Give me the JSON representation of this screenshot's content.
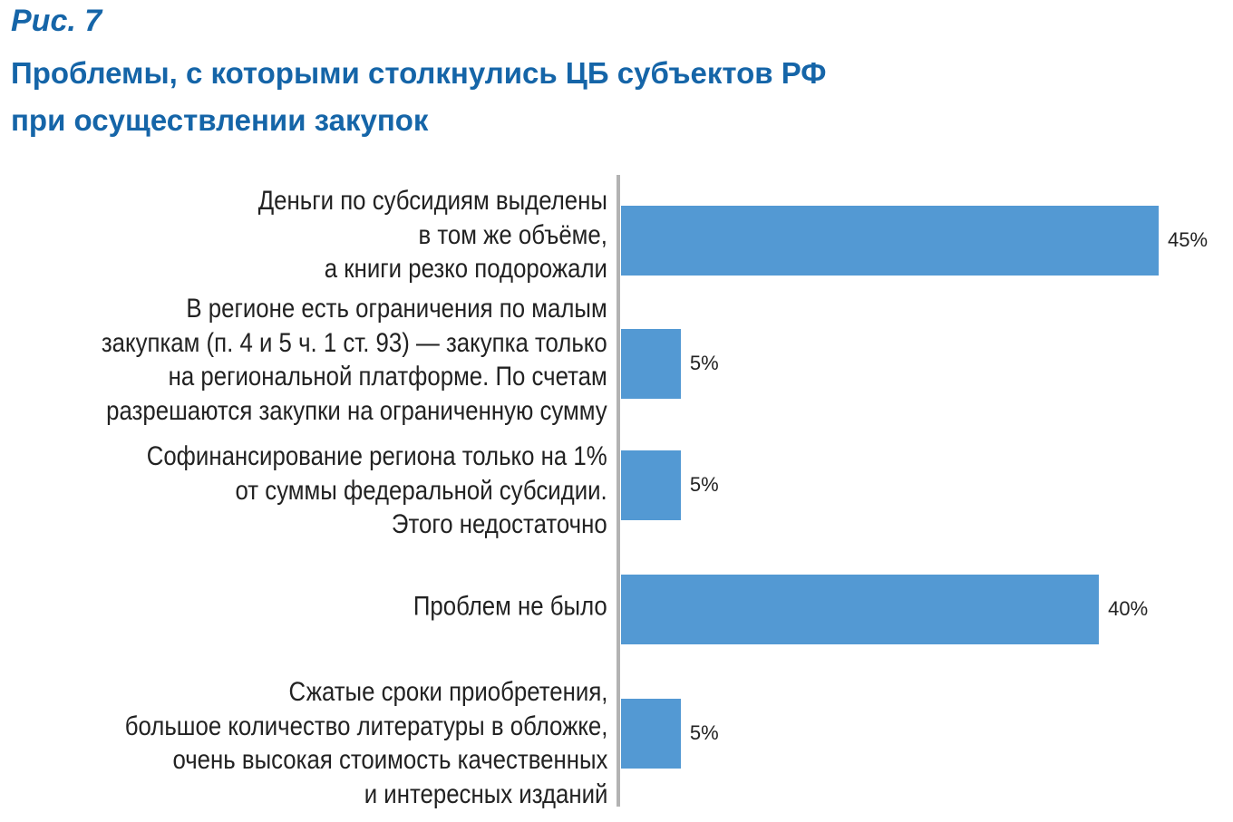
{
  "figure_label": "Рис. 7",
  "title_lines": [
    "Проблемы, с которыми столкнулись ЦБ субъектов РФ",
    "при осуществлении закупок"
  ],
  "colors": {
    "title": "#1565a8",
    "bar": "#5399d3",
    "axis": "#b3b3b3"
  },
  "chart_data": {
    "type": "bar",
    "orientation": "horizontal",
    "title": "Проблемы, с которыми столкнулись ЦБ субъектов РФ при осуществлении закупок",
    "categories": [
      [
        "Деньги по субсидиям выделены",
        "в том же объёме,",
        "а книги резко подорожали"
      ],
      [
        "В регионе есть ограничения по малым",
        "закупкам (п. 4 и 5 ч. 1 ст. 93) — закупка только",
        "на региональной платформе. По счетам",
        "разрешаются закупки на ограниченную сумму"
      ],
      [
        "Софинансирование региона только на 1%",
        "от суммы федеральной субсидии.",
        "Этого недостаточно"
      ],
      [
        "Проблем не было"
      ],
      [
        "Сжатые сроки приобретения,",
        "большое количество литературы в обложке,",
        "очень высокая стоимость качественных",
        "и интересных изданий"
      ]
    ],
    "values": [
      45,
      5,
      5,
      40,
      5
    ],
    "value_labels": [
      "45%",
      "5%",
      "5%",
      "40%",
      "5%"
    ],
    "unit": "%",
    "xlim": [
      0,
      45
    ]
  }
}
